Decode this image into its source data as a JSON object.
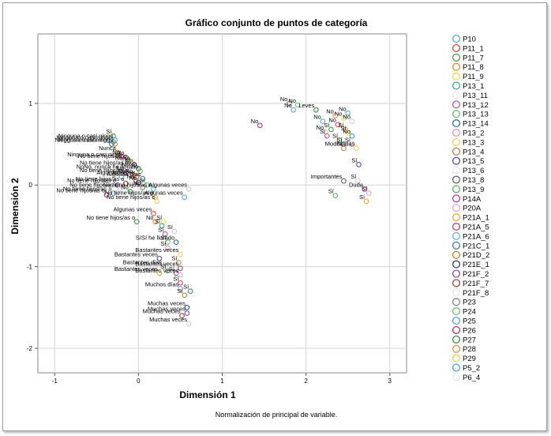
{
  "chart_data": {
    "type": "scatter",
    "title": "Gráfico conjunto de puntos de categoría",
    "xlabel": "Dimensión 1",
    "ylabel": "Dimensión 2",
    "footnote": "Normalización de principal de variable.",
    "xlim": [
      -1.2,
      3.2
    ],
    "ylim": [
      -2.3,
      1.85
    ],
    "xticks": [
      -1,
      0,
      1,
      2,
      3
    ],
    "yticks": [
      -2,
      -1,
      0,
      1
    ],
    "grid": true,
    "legend_position": "right",
    "series": [
      {
        "name": "P10",
        "color": "#5aa9d6"
      },
      {
        "name": "P11_1",
        "color": "#d64545"
      },
      {
        "name": "P11_7",
        "color": "#4a9a4a"
      },
      {
        "name": "P11_8",
        "color": "#e28a2b"
      },
      {
        "name": "P11_9",
        "color": "#e8d94a"
      },
      {
        "name": "P13_1",
        "color": "#3aa8a8"
      },
      {
        "name": "P13_11",
        "color": "#f5f5f5"
      },
      {
        "name": "P13_12",
        "color": "#b05cb0"
      },
      {
        "name": "P13_13",
        "color": "#6cc06c"
      },
      {
        "name": "P13_14",
        "color": "#2e6e8e"
      },
      {
        "name": "P13_2",
        "color": "#e68fbf"
      },
      {
        "name": "P13_3",
        "color": "#f0d060"
      },
      {
        "name": "P13_4",
        "color": "#c08040"
      },
      {
        "name": "P13_5",
        "color": "#5a4a9a"
      },
      {
        "name": "P13_6",
        "color": "#f5f5f5"
      },
      {
        "name": "P13_8",
        "color": "#606060"
      },
      {
        "name": "P13_9",
        "color": "#60b060"
      },
      {
        "name": "P14A",
        "color": "#b04090"
      },
      {
        "name": "P20A",
        "color": "#e0a8d8"
      },
      {
        "name": "P21A_1",
        "color": "#e0b030"
      },
      {
        "name": "P21A_5",
        "color": "#d04060"
      },
      {
        "name": "P21A_6",
        "color": "#70b0d0"
      },
      {
        "name": "P21C_1",
        "color": "#4080a0"
      },
      {
        "name": "P21D_2",
        "color": "#c08030"
      },
      {
        "name": "P21E_1",
        "color": "#304080"
      },
      {
        "name": "P21F_2",
        "color": "#8050a0"
      },
      {
        "name": "P21F_7",
        "color": "#a04040"
      },
      {
        "name": "P21F_8",
        "color": "#f5f5f5"
      },
      {
        "name": "P23",
        "color": "#808080"
      },
      {
        "name": "P24",
        "color": "#70c070"
      },
      {
        "name": "P25",
        "color": "#60a0d0"
      },
      {
        "name": "P26",
        "color": "#b03060"
      },
      {
        "name": "P27",
        "color": "#3a8a3a"
      },
      {
        "name": "P28",
        "color": "#e09050"
      },
      {
        "name": "P29",
        "color": "#e8d060"
      },
      {
        "name": "P5_2",
        "color": "#50a8d0"
      },
      {
        "name": "P6_4",
        "color": "#f5f5f5"
      }
    ],
    "points": [
      {
        "x": -0.3,
        "y": 0.6,
        "label": "Sí",
        "s": 2
      },
      {
        "x": -0.28,
        "y": 0.55,
        "label": "Ninguna o casi ningu",
        "s": 0
      },
      {
        "x": -0.3,
        "y": 0.53,
        "label": "Ninguna o casi ningu",
        "s": 5
      },
      {
        "x": -0.32,
        "y": 0.5,
        "label": "Ninguna o casi ningu",
        "s": 9
      },
      {
        "x": -0.28,
        "y": 0.5,
        "label": "Ninguna o casi ningu",
        "s": 12
      },
      {
        "x": -0.25,
        "y": 0.4,
        "label": "Nunca",
        "s": 3
      },
      {
        "x": -0.2,
        "y": 0.35,
        "label": "No",
        "s": 1
      },
      {
        "x": -0.15,
        "y": 0.34,
        "label": "No",
        "s": 7
      },
      {
        "x": -0.17,
        "y": 0.32,
        "label": "Ninguna o casi ningu",
        "s": 10
      },
      {
        "x": -0.12,
        "y": 0.3,
        "label": "No tiene hijos/as o",
        "s": 8
      },
      {
        "x": -0.08,
        "y": 0.28,
        "label": "NoNo",
        "s": 11
      },
      {
        "x": -0.05,
        "y": 0.25,
        "label": "No",
        "s": 13
      },
      {
        "x": -0.1,
        "y": 0.22,
        "label": "No tiene hijos/as o",
        "s": 14
      },
      {
        "x": 0.0,
        "y": 0.2,
        "label": "NoNo",
        "s": 15
      },
      {
        "x": 0.02,
        "y": 0.17,
        "label": "NoNo, nunca he llorado",
        "s": 16
      },
      {
        "x": -0.15,
        "y": 0.15,
        "label": "No",
        "s": 17
      },
      {
        "x": -0.1,
        "y": 0.13,
        "label": "No tiene hijos/as o",
        "s": 18
      },
      {
        "x": -0.05,
        "y": 0.12,
        "label": "NoNo",
        "s": 19
      },
      {
        "x": -0.02,
        "y": 0.1,
        "label": "Algunas veces",
        "s": 20
      },
      {
        "x": -0.2,
        "y": 0.1,
        "label": "No",
        "s": 21
      },
      {
        "x": 0.05,
        "y": 0.08,
        "label": "Algunos días",
        "s": 22
      },
      {
        "x": -0.03,
        "y": 0.05,
        "label": "No",
        "s": 23
      },
      {
        "x": 0.0,
        "y": 0.03,
        "label": "No",
        "s": 24
      },
      {
        "x": -0.25,
        "y": 0.0,
        "label": "No tiene hijos/as o",
        "s": 25
      },
      {
        "x": -0.15,
        "y": 0.02,
        "label": "No tiene hijos/as o",
        "s": 26
      },
      {
        "x": -0.22,
        "y": -0.05,
        "label": "No tiene hijos/as o",
        "s": 27
      },
      {
        "x": 0.05,
        "y": -0.03,
        "label": "No",
        "s": 28
      },
      {
        "x": 0.1,
        "y": 0.0,
        "label": "Sí",
        "s": 29
      },
      {
        "x": -0.3,
        "y": -0.1,
        "label": "No tiene hijos/as o",
        "s": 30
      },
      {
        "x": -0.38,
        "y": -0.12,
        "label": "No tiene hijos/as o",
        "s": 31
      },
      {
        "x": -0.1,
        "y": -0.08,
        "label": "No",
        "s": 32
      },
      {
        "x": 0.2,
        "y": -0.15,
        "label": "No tiene hijos/as o",
        "s": 33
      },
      {
        "x": 0.22,
        "y": -0.2,
        "label": "No tiene hijos/as o",
        "s": 34
      },
      {
        "x": 0.18,
        "y": -0.05,
        "label": "No tiene hijos/as o",
        "s": 35
      },
      {
        "x": 0.6,
        "y": -0.05,
        "label": "Algunas veces",
        "s": 36
      },
      {
        "x": 0.55,
        "y": -0.15,
        "label": "Algunas veces",
        "s": 0
      },
      {
        "x": 0.18,
        "y": -0.35,
        "label": "Algunas veces",
        "s": 1
      },
      {
        "x": -0.02,
        "y": -0.45,
        "label": "No tiene hijos/as o",
        "s": 2
      },
      {
        "x": 0.2,
        "y": -0.45,
        "label": "No",
        "s": 3
      },
      {
        "x": 0.3,
        "y": -0.45,
        "label": "Sí",
        "s": 4
      },
      {
        "x": 0.28,
        "y": -0.5,
        "label": "Sí",
        "s": 5
      },
      {
        "x": 0.43,
        "y": -0.57,
        "label": "Sí",
        "s": 6
      },
      {
        "x": 0.32,
        "y": -0.6,
        "label": "Sí",
        "s": 7
      },
      {
        "x": 0.35,
        "y": -0.7,
        "label": "Sí",
        "s": 8
      },
      {
        "x": 0.45,
        "y": -0.7,
        "label": "SíSí he llorado",
        "s": 9
      },
      {
        "x": 0.35,
        "y": -0.77,
        "label": "Sí",
        "s": 10
      },
      {
        "x": 0.5,
        "y": -0.85,
        "label": "Bastantes veces",
        "s": 11
      },
      {
        "x": 0.48,
        "y": -0.95,
        "label": "Sí",
        "s": 12
      },
      {
        "x": 0.25,
        "y": -0.9,
        "label": "Bastantes veces",
        "s": 13
      },
      {
        "x": 0.3,
        "y": -1.0,
        "label": "Bastantes días",
        "s": 14
      },
      {
        "x": 0.5,
        "y": -1.02,
        "label": "Bastantes veces",
        "s": 15
      },
      {
        "x": 0.35,
        "y": -1.05,
        "label": "Sí",
        "s": 16
      },
      {
        "x": 0.45,
        "y": -1.08,
        "label": "Sí",
        "s": 17
      },
      {
        "x": 0.5,
        "y": -1.1,
        "label": "Bastantes veces",
        "s": 18
      },
      {
        "x": 0.25,
        "y": -1.08,
        "label": "Bastantes veces",
        "s": 19
      },
      {
        "x": 0.5,
        "y": -1.2,
        "label": "Sí",
        "s": 20
      },
      {
        "x": 0.5,
        "y": -1.27,
        "label": "Muchos días",
        "s": 21
      },
      {
        "x": 0.62,
        "y": -1.3,
        "label": "Sí",
        "s": 22
      },
      {
        "x": 0.55,
        "y": -1.35,
        "label": "Sí",
        "s": 23
      },
      {
        "x": 0.58,
        "y": -1.5,
        "label": "Muchas veces",
        "s": 24
      },
      {
        "x": 0.58,
        "y": -1.57,
        "label": "Muchas veces",
        "s": 25
      },
      {
        "x": 0.52,
        "y": -1.6,
        "label": "Muchas veces",
        "s": 26
      },
      {
        "x": 0.6,
        "y": -1.7,
        "label": "Muchas veces",
        "s": 27
      },
      {
        "x": 1.8,
        "y": 1.0,
        "label": "No",
        "s": 28
      },
      {
        "x": 1.9,
        "y": 0.98,
        "label": "No",
        "s": 29
      },
      {
        "x": 1.85,
        "y": 0.92,
        "label": "No",
        "s": 30
      },
      {
        "x": 1.45,
        "y": 0.73,
        "label": "No",
        "s": 31
      },
      {
        "x": 2.12,
        "y": 0.92,
        "label": "Leves",
        "s": 32
      },
      {
        "x": 2.35,
        "y": 0.85,
        "label": "No",
        "s": 33
      },
      {
        "x": 2.45,
        "y": 0.82,
        "label": "No",
        "s": 34
      },
      {
        "x": 2.5,
        "y": 0.88,
        "label": "No",
        "s": 35
      },
      {
        "x": 2.55,
        "y": 0.78,
        "label": "No",
        "s": 36
      },
      {
        "x": 2.2,
        "y": 0.78,
        "label": "No",
        "s": 0
      },
      {
        "x": 2.38,
        "y": 0.74,
        "label": "No",
        "s": 1
      },
      {
        "x": 2.3,
        "y": 0.68,
        "label": "Sí",
        "s": 2
      },
      {
        "x": 2.47,
        "y": 0.68,
        "label": "Sí",
        "s": 3
      },
      {
        "x": 2.5,
        "y": 0.64,
        "label": "Sí",
        "s": 4
      },
      {
        "x": 2.55,
        "y": 0.6,
        "label": "No",
        "s": 5
      },
      {
        "x": 2.23,
        "y": 0.65,
        "label": "No",
        "s": 6
      },
      {
        "x": 2.25,
        "y": 0.6,
        "label": "Sí",
        "s": 7
      },
      {
        "x": 2.4,
        "y": 0.55,
        "label": "Sí",
        "s": 8
      },
      {
        "x": 2.45,
        "y": 0.5,
        "label": "Sí",
        "s": 9
      },
      {
        "x": 2.55,
        "y": 0.5,
        "label": "Sí",
        "s": 10
      },
      {
        "x": 2.6,
        "y": 0.45,
        "label": "Moderadas",
        "s": 11
      },
      {
        "x": 2.45,
        "y": 0.45,
        "label": "Sí",
        "s": 12
      },
      {
        "x": 2.63,
        "y": 0.25,
        "label": "Sí",
        "s": 13
      },
      {
        "x": 2.62,
        "y": 0.05,
        "label": "Sí",
        "s": 14
      },
      {
        "x": 2.45,
        "y": 0.05,
        "label": "Importantes",
        "s": 15
      },
      {
        "x": 2.35,
        "y": -0.13,
        "label": "Sí",
        "s": 16
      },
      {
        "x": 2.7,
        "y": -0.05,
        "label": "Duda",
        "s": 17
      },
      {
        "x": 2.75,
        "y": -0.1,
        "label": "Sí",
        "s": 18
      },
      {
        "x": 2.72,
        "y": -0.2,
        "label": "Sí",
        "s": 19
      }
    ]
  }
}
